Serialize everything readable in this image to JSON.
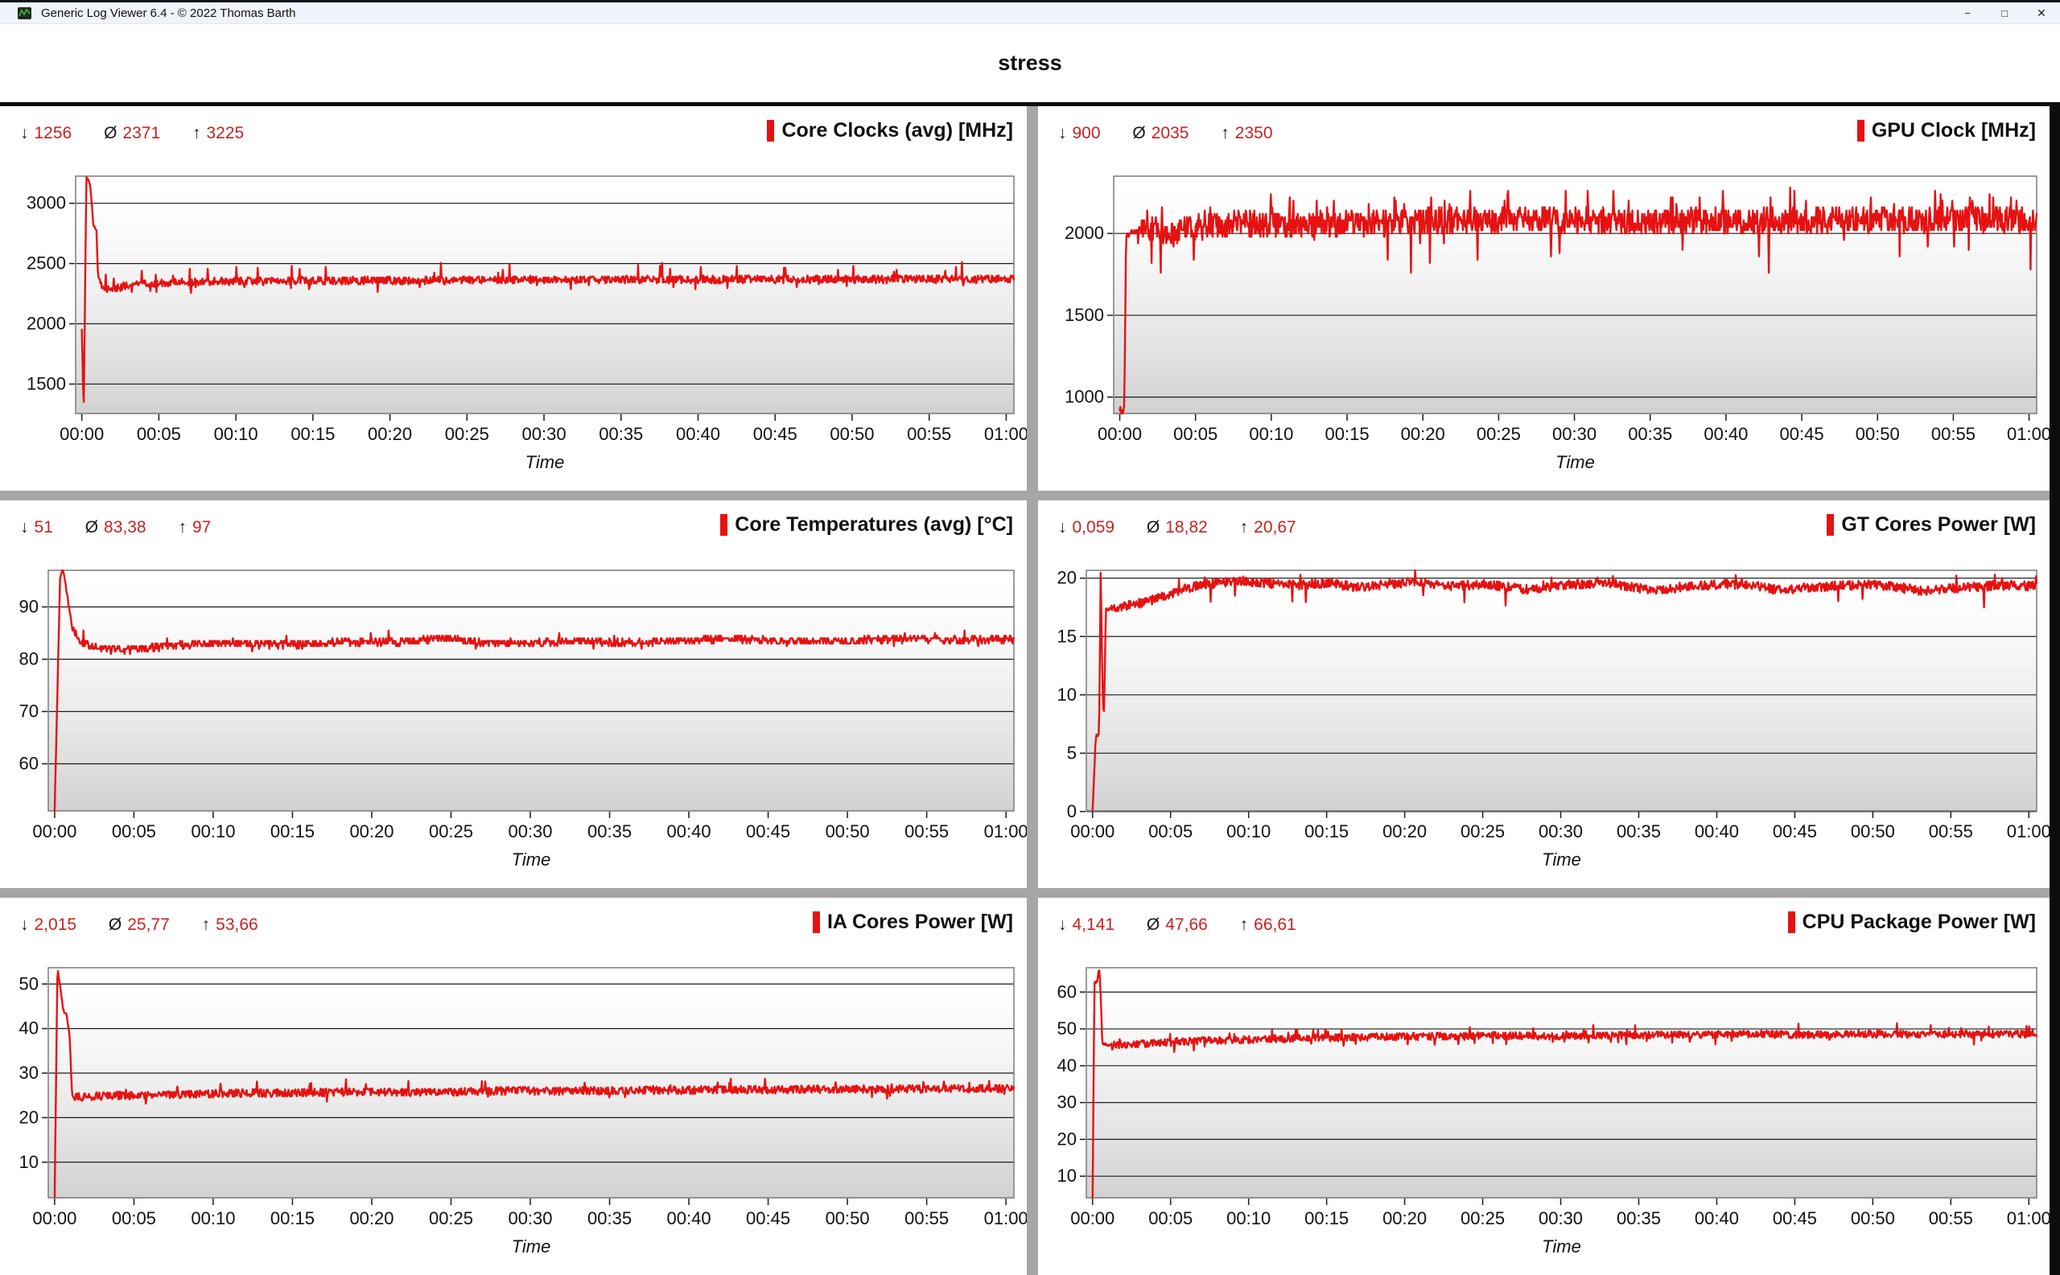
{
  "window": {
    "title": "Generic Log Viewer 6.4 - © 2022 Thomas Barth",
    "controls": {
      "minimize": "−",
      "maximize": "□",
      "close": "✕"
    }
  },
  "header": {
    "title": "stress"
  },
  "stat_symbols": {
    "min": "↓",
    "avg": "Ø",
    "max": "↑"
  },
  "time_axis": {
    "label": "Time",
    "ticks": [
      "00:00",
      "00:05",
      "00:10",
      "00:15",
      "00:20",
      "00:25",
      "00:30",
      "00:35",
      "00:40",
      "00:45",
      "00:50",
      "00:55",
      "01:00"
    ],
    "range_minutes": [
      0,
      61
    ]
  },
  "colors": {
    "line": "#e61212",
    "stat_number": "#cc2020",
    "legend_bar": "#e61212",
    "grid_line": "#1c1c1c",
    "plot_border": "#7c7c7c",
    "divider": "#a6a6a6"
  },
  "chart_data": [
    {
      "id": "core-clocks",
      "type": "line",
      "title": "Core Clocks (avg) [MHz]",
      "stats": {
        "min": "1256",
        "avg": "2371",
        "max": "3225"
      },
      "ymin": 1256,
      "ymax": 3225,
      "yticks": [
        1500,
        2000,
        2500,
        3000
      ],
      "xlabel": "Time",
      "points": [
        [
          0,
          1950
        ],
        [
          0.12,
          1256
        ],
        [
          0.3,
          3225
        ],
        [
          0.55,
          3150
        ],
        [
          0.75,
          2820
        ],
        [
          0.95,
          2780
        ],
        [
          1.05,
          2400
        ],
        [
          1.3,
          2310
        ],
        [
          1.8,
          2280
        ],
        [
          2.6,
          2310
        ],
        [
          4,
          2330
        ],
        [
          6,
          2345
        ],
        [
          10,
          2355
        ],
        [
          20,
          2360
        ],
        [
          35,
          2368
        ],
        [
          50,
          2370
        ],
        [
          61,
          2372
        ]
      ],
      "noise": 32,
      "quant": 8,
      "spike_up": [
        140,
        0.02
      ],
      "spike_down": [
        70,
        0.03
      ],
      "samples": 1400,
      "seed": 11
    },
    {
      "id": "gpu-clock",
      "type": "line",
      "title": "GPU Clock [MHz]",
      "stats": {
        "min": "900",
        "avg": "2035",
        "max": "2350"
      },
      "ymin": 900,
      "ymax": 2350,
      "yticks": [
        1000,
        1500,
        2000
      ],
      "xlabel": "Time",
      "points": [
        [
          0,
          935
        ],
        [
          0.15,
          900
        ],
        [
          0.3,
          950
        ],
        [
          0.42,
          1990
        ],
        [
          1,
          2010
        ],
        [
          2,
          2030
        ],
        [
          3.5,
          1990
        ],
        [
          5,
          2040
        ],
        [
          8,
          2060
        ],
        [
          12,
          2050
        ],
        [
          18,
          2070
        ],
        [
          25,
          2080
        ],
        [
          25.5,
          2090
        ],
        [
          25.6,
          2340
        ],
        [
          25.7,
          2090
        ],
        [
          35,
          2070
        ],
        [
          45,
          2080
        ],
        [
          55,
          2090
        ],
        [
          61,
          2080
        ]
      ],
      "noise": 80,
      "quant": 20,
      "spike_up": [
        130,
        0.05
      ],
      "spike_down": [
        260,
        0.012
      ],
      "samples": 1500,
      "seed": 22
    },
    {
      "id": "core-temperatures",
      "type": "line",
      "title": "Core Temperatures (avg) [°C]",
      "stats": {
        "min": "51",
        "avg": "83,38",
        "max": "97"
      },
      "ymin": 51,
      "ymax": 97,
      "yticks": [
        50,
        60,
        70,
        80,
        90
      ],
      "xlabel": "Time",
      "points": [
        [
          0,
          51
        ],
        [
          0.35,
          96
        ],
        [
          0.55,
          97
        ],
        [
          0.75,
          93
        ],
        [
          1.1,
          86
        ],
        [
          1.6,
          83.5
        ],
        [
          2.2,
          82.5
        ],
        [
          3,
          82
        ],
        [
          4,
          81.8
        ],
        [
          5.5,
          82
        ],
        [
          7,
          82.5
        ],
        [
          9,
          83
        ],
        [
          12,
          83
        ],
        [
          15,
          82.8
        ],
        [
          18,
          83.2
        ],
        [
          22,
          83.4
        ],
        [
          25,
          84
        ],
        [
          27,
          83.2
        ],
        [
          30,
          83
        ],
        [
          33,
          83.5
        ],
        [
          36,
          83.2
        ],
        [
          40,
          83.6
        ],
        [
          43,
          84
        ],
        [
          46,
          83.4
        ],
        [
          50,
          83.5
        ],
        [
          54,
          84
        ],
        [
          57,
          83.6
        ],
        [
          61,
          84
        ]
      ],
      "noise": 0.7,
      "quant": 0.5,
      "spike_up": [
        2,
        0.01
      ],
      "spike_down": [
        1,
        0.01
      ],
      "samples": 1400,
      "seed": 33
    },
    {
      "id": "gt-cores-power",
      "type": "line",
      "title": "GT Cores Power [W]",
      "stats": {
        "min": "0,059",
        "avg": "18,82",
        "max": "20,67"
      },
      "ymin": 0.059,
      "ymax": 20.67,
      "yticks": [
        0,
        5,
        10,
        15,
        20
      ],
      "xlabel": "Time",
      "points": [
        [
          0,
          0.06
        ],
        [
          0.2,
          6.4
        ],
        [
          0.42,
          6.7
        ],
        [
          0.52,
          20.67
        ],
        [
          0.62,
          12
        ],
        [
          0.72,
          7.4
        ],
        [
          0.85,
          17.3
        ],
        [
          1.5,
          17.5
        ],
        [
          2.5,
          17.7
        ],
        [
          3.5,
          18
        ],
        [
          4.5,
          18.4
        ],
        [
          5.5,
          18.9
        ],
        [
          6.5,
          19.3
        ],
        [
          8,
          19.6
        ],
        [
          9.5,
          19.8
        ],
        [
          11,
          19.6
        ],
        [
          13,
          19.4
        ],
        [
          15,
          19.6
        ],
        [
          17,
          19.2
        ],
        [
          19,
          19.5
        ],
        [
          21,
          19.7
        ],
        [
          23,
          19.3
        ],
        [
          25,
          19.5
        ],
        [
          28,
          19
        ],
        [
          30,
          19.4
        ],
        [
          33,
          19.6
        ],
        [
          36,
          18.9
        ],
        [
          38,
          19.3
        ],
        [
          41,
          19.5
        ],
        [
          44,
          19
        ],
        [
          47,
          19.3
        ],
        [
          50,
          19.5
        ],
        [
          53,
          18.9
        ],
        [
          56,
          19.2
        ],
        [
          58,
          19.4
        ],
        [
          61,
          19.3
        ]
      ],
      "noise": 0.4,
      "quant": 0,
      "spike_up": [
        0.8,
        0.02
      ],
      "spike_down": [
        1.7,
        0.012
      ],
      "samples": 1400,
      "seed": 44
    },
    {
      "id": "ia-cores-power",
      "type": "line",
      "title": "IA Cores Power [W]",
      "stats": {
        "min": "2,015",
        "avg": "25,77",
        "max": "53,66"
      },
      "ymin": 2.015,
      "ymax": 53.66,
      "yticks": [
        10,
        20,
        30,
        40,
        50
      ],
      "xlabel": "Time",
      "points": [
        [
          0,
          2.02
        ],
        [
          0.18,
          53.66
        ],
        [
          0.4,
          48
        ],
        [
          0.55,
          44
        ],
        [
          0.75,
          43.2
        ],
        [
          0.95,
          38
        ],
        [
          1.1,
          25
        ],
        [
          1.6,
          24.6
        ],
        [
          2.5,
          24.8
        ],
        [
          4,
          25
        ],
        [
          6,
          25.2
        ],
        [
          9,
          25.3
        ],
        [
          12,
          25.5
        ],
        [
          16,
          25.6
        ],
        [
          20,
          25.8
        ],
        [
          24,
          25.7
        ],
        [
          28,
          26
        ],
        [
          32,
          26
        ],
        [
          36,
          26.1
        ],
        [
          40,
          26.2
        ],
        [
          45,
          26.3
        ],
        [
          50,
          26.4
        ],
        [
          55,
          26.4
        ],
        [
          61,
          26.6
        ]
      ],
      "noise": 0.9,
      "quant": 0,
      "spike_up": [
        2.2,
        0.02
      ],
      "spike_down": [
        1.6,
        0.012
      ],
      "samples": 1400,
      "seed": 55
    },
    {
      "id": "cpu-package-power",
      "type": "line",
      "title": "CPU Package Power [W]",
      "stats": {
        "min": "4,141",
        "avg": "47,66",
        "max": "66,61"
      },
      "ymin": 4.141,
      "ymax": 66.61,
      "yticks": [
        10,
        20,
        30,
        40,
        50,
        60
      ],
      "xlabel": "Time",
      "points": [
        [
          0,
          4.2
        ],
        [
          0.12,
          62.5
        ],
        [
          0.3,
          63
        ],
        [
          0.42,
          66.6
        ],
        [
          0.5,
          62
        ],
        [
          0.62,
          46
        ],
        [
          1.2,
          45.6
        ],
        [
          2,
          45.8
        ],
        [
          3.5,
          46
        ],
        [
          5,
          46.3
        ],
        [
          7,
          46.8
        ],
        [
          9,
          47
        ],
        [
          12,
          47.3
        ],
        [
          15,
          47.6
        ],
        [
          18,
          47.8
        ],
        [
          22,
          48
        ],
        [
          26,
          48.2
        ],
        [
          30,
          48
        ],
        [
          34,
          48.3
        ],
        [
          38,
          48.4
        ],
        [
          42,
          48.6
        ],
        [
          46,
          48.4
        ],
        [
          50,
          48.6
        ],
        [
          54,
          48.5
        ],
        [
          58,
          48.6
        ],
        [
          61,
          48.7
        ]
      ],
      "noise": 1.0,
      "quant": 0,
      "spike_up": [
        2.2,
        0.03
      ],
      "spike_down": [
        2.0,
        0.02
      ],
      "samples": 1400,
      "seed": 66
    }
  ]
}
